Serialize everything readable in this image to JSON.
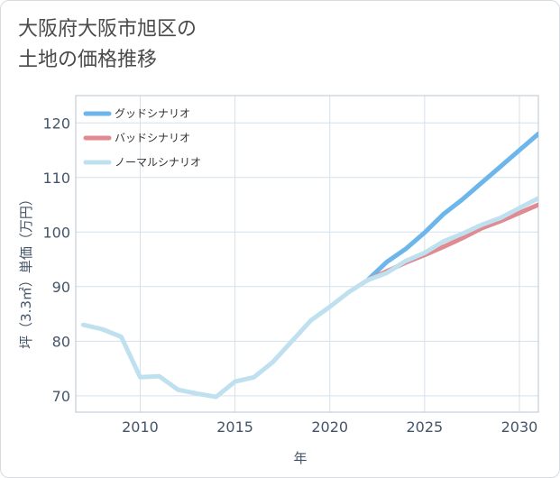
{
  "title_lines": [
    "大阪府大阪市旭区の",
    "土地の価格推移"
  ],
  "chart_data": {
    "type": "line",
    "title": "大阪府大阪市旭区の土地の価格推移",
    "xlabel": "年",
    "ylabel": "坪（3.3㎡）単価（万円）",
    "xlim": [
      2006.6,
      2031
    ],
    "ylim": [
      67,
      125
    ],
    "xticks": [
      2010,
      2015,
      2020,
      2025,
      2030
    ],
    "yticks": [
      70,
      80,
      90,
      100,
      110,
      120
    ],
    "grid": true,
    "legend_position": "top-left",
    "series": [
      {
        "name": "グッドシナリオ",
        "color": "#6cb6ec",
        "x": [
          2022,
          2023,
          2024,
          2025,
          2026,
          2027,
          2028,
          2029,
          2030,
          2031
        ],
        "values": [
          91.2,
          94.5,
          96.9,
          99.9,
          103.3,
          106.0,
          109.0,
          112.0,
          115.0,
          118.0
        ]
      },
      {
        "name": "バッドシナリオ",
        "color": "#e08a92",
        "x": [
          2022,
          2023,
          2024,
          2025,
          2026,
          2027,
          2028,
          2029,
          2030,
          2031
        ],
        "values": [
          91.2,
          92.8,
          94.4,
          95.8,
          97.3,
          98.9,
          100.7,
          102.0,
          103.5,
          105.0
        ]
      },
      {
        "name": "ノーマルシナリオ",
        "color": "#bfe0ee",
        "x": [
          2007,
          2008,
          2009,
          2010,
          2011,
          2012,
          2013,
          2014,
          2015,
          2016,
          2017,
          2018,
          2019,
          2020,
          2021,
          2022,
          2023,
          2024,
          2025,
          2026,
          2027,
          2028,
          2029,
          2030,
          2031
        ],
        "values": [
          83.0,
          82.2,
          80.8,
          73.4,
          73.6,
          71.1,
          70.4,
          69.8,
          72.6,
          73.4,
          76.2,
          80.0,
          83.8,
          86.3,
          89.0,
          91.2,
          92.5,
          94.7,
          96.2,
          98.3,
          99.7,
          101.3,
          102.6,
          104.4,
          106.2
        ]
      }
    ]
  }
}
